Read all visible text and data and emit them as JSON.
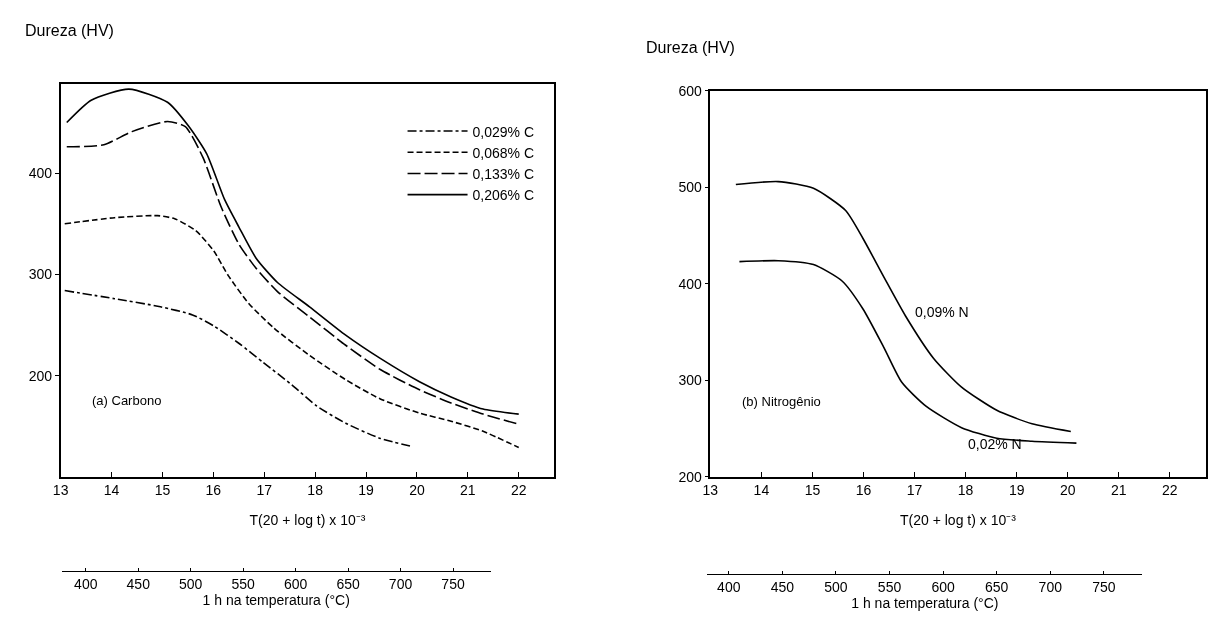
{
  "chart_data": [
    {
      "type": "line",
      "ylabel": "Dureza (HV)",
      "xlabel": "T(20 + log t) x 10⁻³",
      "x2label": "1 h na temperatura (°C)",
      "annotations": [
        "(a) Carbono"
      ],
      "xlim": [
        13,
        22.7
      ],
      "xticks": [
        13,
        14,
        15,
        16,
        17,
        18,
        19,
        20,
        21,
        22
      ],
      "ylim": [
        100,
        488
      ],
      "yticks": [
        200,
        300,
        400
      ],
      "x2lim": [
        377,
        786
      ],
      "x2ticks": [
        400,
        450,
        500,
        550,
        600,
        650,
        700,
        750
      ],
      "legend": "top right",
      "marker": "none",
      "series": [
        {
          "name": "0,029% C",
          "color": "#000000",
          "line_style": "dashdot",
          "x": [
            13.08,
            14.06,
            14.96,
            15.59,
            16.01,
            16.5,
            16.98,
            17.54,
            18.03,
            18.6,
            19.28,
            19.91
          ],
          "values": [
            284,
            276,
            268,
            260,
            249,
            232,
            213,
            191,
            170,
            153,
            138,
            130
          ]
        },
        {
          "name": "0,068% C",
          "color": "#000000",
          "line_style": "dashed",
          "x": [
            13.08,
            14.06,
            14.9,
            15.24,
            15.66,
            16.01,
            16.29,
            16.7,
            17.19,
            17.89,
            18.6,
            19.28,
            20.05,
            20.67,
            21.3,
            22.0
          ],
          "values": [
            350,
            356,
            358,
            355,
            343,
            323,
            299,
            271,
            247,
            220,
            196,
            177,
            163,
            155,
            145,
            129
          ]
        },
        {
          "name": "0,133% C",
          "color": "#000000",
          "line_style": "longdash",
          "x": [
            13.12,
            13.85,
            14.4,
            15.1,
            15.45,
            15.8,
            16.15,
            16.5,
            16.84,
            17.26,
            17.89,
            18.6,
            19.28,
            20.05,
            20.67,
            21.3,
            22.0
          ],
          "values": [
            426,
            428,
            441,
            451,
            446,
            415,
            367,
            330,
            306,
            283,
            258,
            230,
            206,
            186,
            173,
            162,
            152
          ]
        },
        {
          "name": "0,206% C",
          "color": "#000000",
          "line_style": "solid",
          "x": [
            13.12,
            13.6,
            14.34,
            15.1,
            15.52,
            15.87,
            16.22,
            16.5,
            16.84,
            17.26,
            17.89,
            18.6,
            19.28,
            20.05,
            20.67,
            21.3,
            22.0
          ],
          "values": [
            450,
            472,
            483,
            470,
            446,
            419,
            374,
            347,
            316,
            292,
            268,
            240,
            217,
            194,
            179,
            167,
            162
          ]
        }
      ]
    },
    {
      "type": "line",
      "ylabel": "Dureza (HV)",
      "xlabel": "T(20 + log t) x 10⁻³",
      "x2label": "1 h na temperatura (°C)",
      "annotations": [
        "(b) Nitrogênio"
      ],
      "xlim": [
        13,
        22.7
      ],
      "xticks": [
        13,
        14,
        15,
        16,
        17,
        18,
        19,
        20,
        21,
        22
      ],
      "ylim": [
        200,
        600
      ],
      "yticks": [
        200,
        300,
        400,
        500,
        600
      ],
      "x2lim": [
        380,
        786
      ],
      "x2ticks": [
        400,
        450,
        500,
        550,
        600,
        650,
        700,
        750
      ],
      "legend": false,
      "marker": "none",
      "series": [
        {
          "name": "0,09% N",
          "color": "#000000",
          "line_style": "solid",
          "x": [
            13.5,
            14.33,
            15.02,
            15.65,
            15.99,
            16.4,
            16.82,
            17.37,
            17.92,
            18.61,
            19.3,
            20.06
          ],
          "values": [
            503,
            506,
            499,
            476,
            447,
            407,
            367,
            323,
            293,
            269,
            255,
            247
          ]
        },
        {
          "name": "0,02% N",
          "color": "#000000",
          "line_style": "solid",
          "x": [
            13.57,
            14.33,
            15.02,
            15.58,
            15.99,
            16.4,
            16.75,
            17.23,
            17.92,
            18.61,
            19.3,
            20.17
          ],
          "values": [
            423,
            424,
            420,
            403,
            374,
            334,
            298,
            273,
            251,
            240,
            237,
            235
          ]
        }
      ]
    }
  ]
}
